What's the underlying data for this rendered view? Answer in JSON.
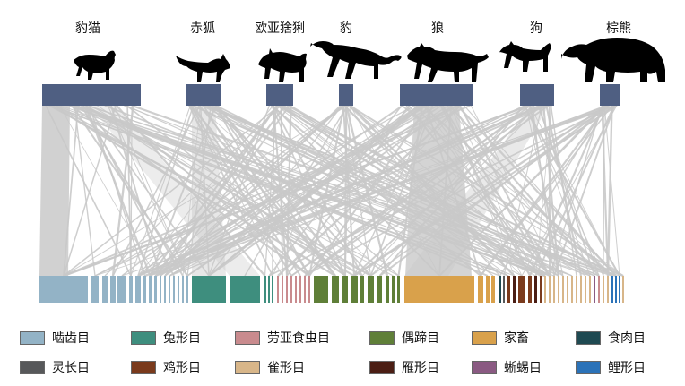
{
  "predators": [
    {
      "label": "豹猫",
      "icon": "leopard-cat-silhouette-icon",
      "span": 1.0
    },
    {
      "label": "赤狐",
      "icon": "red-fox-silhouette-icon",
      "span": 0.45
    },
    {
      "label": "欧亚猞猁",
      "icon": "eurasian-lynx-silhouette-icon",
      "span": 0.35
    },
    {
      "label": "豹",
      "icon": "leopard-silhouette-icon",
      "span": 0.2
    },
    {
      "label": "狼",
      "icon": "wolf-silhouette-icon",
      "span": 1.0
    },
    {
      "label": "狗",
      "icon": "dog-silhouette-icon",
      "span": 0.45
    },
    {
      "label": "棕熊",
      "icon": "brown-bear-silhouette-icon",
      "span": 0.25
    }
  ],
  "prey_groups": [
    {
      "name": "啮齿目",
      "color": "#93b3c6"
    },
    {
      "name": "兔形目",
      "color": "#3e8e7e"
    },
    {
      "name": "劳亚食虫目",
      "color": "#c98b8e"
    },
    {
      "name": "偶蹄目",
      "color": "#5f7f38"
    },
    {
      "name": "家畜",
      "color": "#d9a14b"
    },
    {
      "name": "食肉目",
      "color": "#1f4a52"
    },
    {
      "name": "灵长目",
      "color": "#57585a"
    },
    {
      "name": "鸡形目",
      "color": "#7a3a1c"
    },
    {
      "name": "雀形目",
      "color": "#d8b689"
    },
    {
      "name": "雁形目",
      "color": "#4b1e14"
    },
    {
      "name": "蜥蜴目",
      "color": "#8a5a82"
    },
    {
      "name": "鲤形目",
      "color": "#2b72b8"
    }
  ],
  "colors": {
    "predator_bar": "#4f5f82",
    "link": "#c9c9c9"
  }
}
